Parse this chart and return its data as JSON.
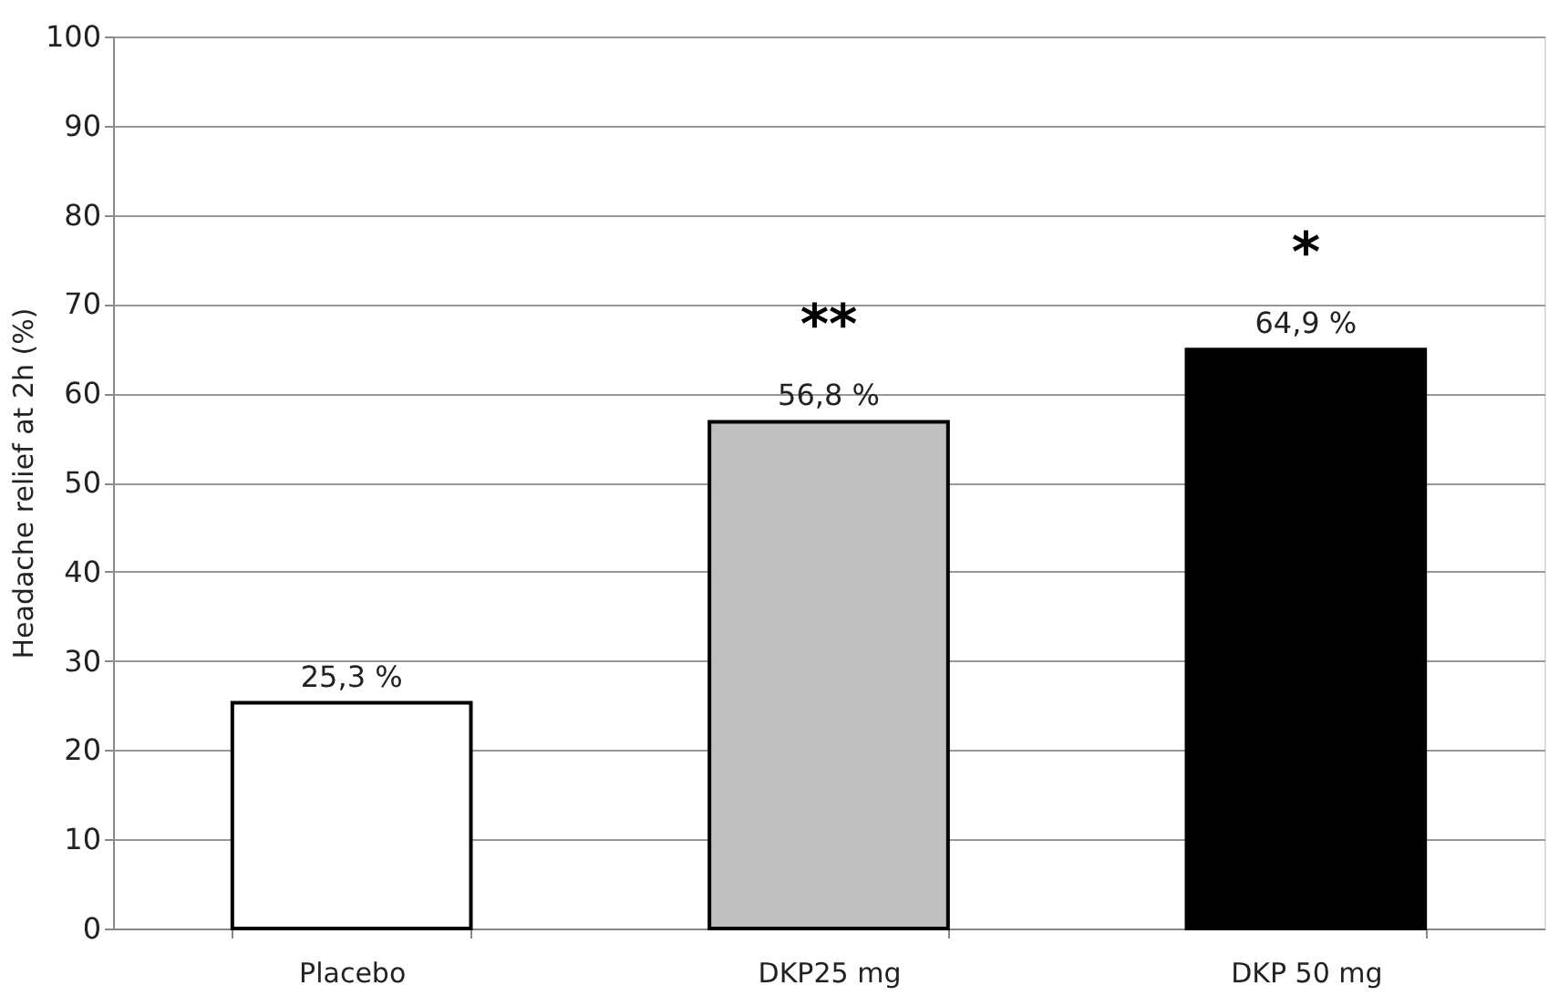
{
  "chart_data": {
    "type": "bar",
    "categories": [
      "Placebo",
      "DKP25 mg",
      "DKP 50 mg"
    ],
    "values": [
      25.3,
      56.8,
      64.9
    ],
    "colors": [
      "#ffffff",
      "#c0c0c0",
      "#000000"
    ],
    "value_labels": [
      "25,3 %",
      "56,8 %",
      "64,9 %"
    ],
    "ylabel": "Headache relief at 2h (%)",
    "ylim": [
      0,
      100
    ],
    "yticks": [
      0,
      10,
      20,
      30,
      40,
      50,
      60,
      70,
      80,
      90,
      100
    ],
    "grid": "y",
    "annotations": [
      "**",
      "*"
    ]
  }
}
